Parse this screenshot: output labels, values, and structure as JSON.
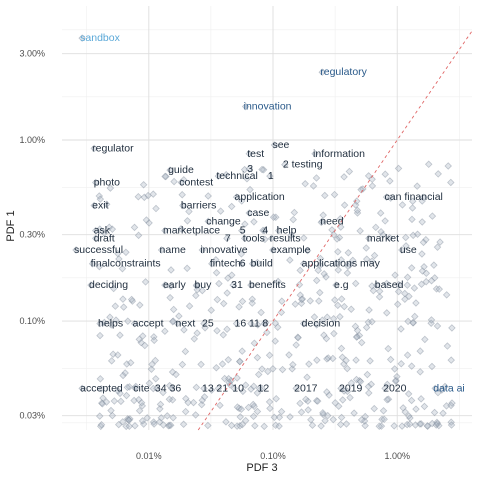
{
  "chart_data": {
    "type": "scatter",
    "xlabel": "PDF 3",
    "ylabel": "PDF 1",
    "x_scale": "log",
    "y_scale": "log",
    "xlim": [
      2e-05,
      0.04
    ],
    "ylim": [
      0.00025,
      0.055
    ],
    "x_ticks": [
      {
        "value": 0.0001,
        "label": "0.01%"
      },
      {
        "value": 0.001,
        "label": "0.10%"
      },
      {
        "value": 0.01,
        "label": "1.00%"
      }
    ],
    "y_ticks": [
      {
        "value": 0.0003,
        "label": "0.03%"
      },
      {
        "value": 0.001,
        "label": "0.10%"
      },
      {
        "value": 0.003,
        "label": "0.30%"
      },
      {
        "value": 0.01,
        "label": "1.00%"
      },
      {
        "value": 0.03,
        "label": "3.00%"
      }
    ],
    "grid": true,
    "diagonal_reference": true,
    "colors": {
      "point_fill": "#a9b4c2",
      "point_stroke": "#7f8a99",
      "word_dark": "#1f2d3d",
      "word_mid": "#2a5a8a",
      "word_light": "#5aa8d8",
      "diagonal": "#e06666",
      "grid": "#dedede"
    },
    "labels": [
      {
        "text": "sandbox",
        "x": 2.8e-05,
        "y": 0.037,
        "tone": "light"
      },
      {
        "text": "regulatory",
        "x": 0.0024,
        "y": 0.024,
        "tone": "mid"
      },
      {
        "text": "innovation",
        "x": 0.00058,
        "y": 0.0155,
        "tone": "mid"
      },
      {
        "text": "regulator",
        "x": 3.5e-05,
        "y": 0.0091,
        "tone": "dark"
      },
      {
        "text": "see",
        "x": 0.00099,
        "y": 0.0095,
        "tone": "dark"
      },
      {
        "text": "test",
        "x": 0.00062,
        "y": 0.0085,
        "tone": "dark"
      },
      {
        "text": "information",
        "x": 0.0021,
        "y": 0.0085,
        "tone": "dark"
      },
      {
        "text": "2 testing",
        "x": 0.0012,
        "y": 0.0074,
        "tone": "dark"
      },
      {
        "text": "guide",
        "x": 0.000143,
        "y": 0.0069,
        "tone": "dark"
      },
      {
        "text": "3",
        "x": 0.00062,
        "y": 0.007,
        "tone": "dark"
      },
      {
        "text": "technical",
        "x": 0.00035,
        "y": 0.0064,
        "tone": "dark"
      },
      {
        "text": "1",
        "x": 0.00091,
        "y": 0.0064,
        "tone": "dark"
      },
      {
        "text": "photo",
        "x": 3.6e-05,
        "y": 0.0059,
        "tone": "dark"
      },
      {
        "text": "contest",
        "x": 0.000176,
        "y": 0.0059,
        "tone": "dark"
      },
      {
        "text": "application",
        "x": 0.00049,
        "y": 0.0049,
        "tone": "dark"
      },
      {
        "text": "can financial",
        "x": 0.0079,
        "y": 0.0049,
        "tone": "dark"
      },
      {
        "text": "exit",
        "x": 3.5e-05,
        "y": 0.0044,
        "tone": "dark"
      },
      {
        "text": "barriers",
        "x": 0.000181,
        "y": 0.0044,
        "tone": "dark"
      },
      {
        "text": "case",
        "x": 0.00062,
        "y": 0.004,
        "tone": "dark"
      },
      {
        "text": "change",
        "x": 0.00029,
        "y": 0.0036,
        "tone": "dark"
      },
      {
        "text": "need",
        "x": 0.0024,
        "y": 0.0036,
        "tone": "dark"
      },
      {
        "text": "ask",
        "x": 3.6e-05,
        "y": 0.0032,
        "tone": "dark"
      },
      {
        "text": "marketplace",
        "x": 0.00013,
        "y": 0.0032,
        "tone": "dark"
      },
      {
        "text": "5",
        "x": 0.00054,
        "y": 0.0032,
        "tone": "dark"
      },
      {
        "text": "4",
        "x": 0.00082,
        "y": 0.0032,
        "tone": "dark"
      },
      {
        "text": "help",
        "x": 0.00107,
        "y": 0.0032,
        "tone": "dark"
      },
      {
        "text": "draft",
        "x": 3.6e-05,
        "y": 0.0029,
        "tone": "dark"
      },
      {
        "text": "7",
        "x": 0.00041,
        "y": 0.0029,
        "tone": "dark"
      },
      {
        "text": "tools",
        "x": 0.00057,
        "y": 0.0029,
        "tone": "dark"
      },
      {
        "text": "results",
        "x": 0.00094,
        "y": 0.0029,
        "tone": "dark"
      },
      {
        "text": "market",
        "x": 0.0057,
        "y": 0.0029,
        "tone": "dark"
      },
      {
        "text": "successful",
        "x": 2.5e-05,
        "y": 0.0025,
        "tone": "dark"
      },
      {
        "text": "name",
        "x": 0.000122,
        "y": 0.0025,
        "tone": "dark"
      },
      {
        "text": "innovative",
        "x": 0.00026,
        "y": 0.0025,
        "tone": "dark"
      },
      {
        "text": "example",
        "x": 0.00096,
        "y": 0.0025,
        "tone": "dark"
      },
      {
        "text": "use",
        "x": 0.0105,
        "y": 0.0025,
        "tone": "dark"
      },
      {
        "text": "finalconstraints",
        "x": 3.4e-05,
        "y": 0.0021,
        "tone": "dark"
      },
      {
        "text": "fintech",
        "x": 0.00031,
        "y": 0.0021,
        "tone": "dark"
      },
      {
        "text": "6",
        "x": 0.00054,
        "y": 0.0021,
        "tone": "dark"
      },
      {
        "text": "build",
        "x": 0.00066,
        "y": 0.0021,
        "tone": "dark"
      },
      {
        "text": "applications may",
        "x": 0.0017,
        "y": 0.0021,
        "tone": "dark"
      },
      {
        "text": "deciding",
        "x": 3.3e-05,
        "y": 0.0016,
        "tone": "dark"
      },
      {
        "text": "early",
        "x": 0.00013,
        "y": 0.0016,
        "tone": "dark"
      },
      {
        "text": "buy",
        "x": 0.000233,
        "y": 0.0016,
        "tone": "dark"
      },
      {
        "text": "31",
        "x": 0.00046,
        "y": 0.0016,
        "tone": "dark"
      },
      {
        "text": "benefits",
        "x": 0.00064,
        "y": 0.0016,
        "tone": "dark"
      },
      {
        "text": "e.g",
        "x": 0.0031,
        "y": 0.0016,
        "tone": "dark"
      },
      {
        "text": "based",
        "x": 0.0066,
        "y": 0.0016,
        "tone": "dark"
      },
      {
        "text": "helps",
        "x": 3.9e-05,
        "y": 0.00098,
        "tone": "dark"
      },
      {
        "text": "accept",
        "x": 7.4e-05,
        "y": 0.00098,
        "tone": "dark"
      },
      {
        "text": "next",
        "x": 0.000164,
        "y": 0.00098,
        "tone": "dark"
      },
      {
        "text": "25",
        "x": 0.000268,
        "y": 0.00098,
        "tone": "dark"
      },
      {
        "text": "16",
        "x": 0.00049,
        "y": 0.00098,
        "tone": "dark"
      },
      {
        "text": "11",
        "x": 0.00064,
        "y": 0.00098,
        "tone": "dark"
      },
      {
        "text": "8",
        "x": 0.00082,
        "y": 0.00098,
        "tone": "dark"
      },
      {
        "text": "decision",
        "x": 0.0017,
        "y": 0.00098,
        "tone": "dark"
      },
      {
        "text": "accepted",
        "x": 2.8e-05,
        "y": 0.00043,
        "tone": "dark"
      },
      {
        "text": "cite",
        "x": 7.5e-05,
        "y": 0.00043,
        "tone": "dark"
      },
      {
        "text": "34",
        "x": 0.000112,
        "y": 0.00043,
        "tone": "dark"
      },
      {
        "text": "36",
        "x": 0.000147,
        "y": 0.00043,
        "tone": "dark"
      },
      {
        "text": "13",
        "x": 0.000268,
        "y": 0.00043,
        "tone": "dark"
      },
      {
        "text": "21",
        "x": 0.00035,
        "y": 0.00043,
        "tone": "dark"
      },
      {
        "text": "10",
        "x": 0.00047,
        "y": 0.00043,
        "tone": "dark"
      },
      {
        "text": "12",
        "x": 0.00075,
        "y": 0.00043,
        "tone": "dark"
      },
      {
        "text": "2017",
        "x": 0.00148,
        "y": 0.00043,
        "tone": "dark"
      },
      {
        "text": "2019",
        "x": 0.0034,
        "y": 0.00043,
        "tone": "dark"
      },
      {
        "text": "2020",
        "x": 0.0077,
        "y": 0.00043,
        "tone": "dark"
      },
      {
        "text": "data ai",
        "x": 0.0195,
        "y": 0.00043,
        "tone": "mid"
      }
    ]
  }
}
